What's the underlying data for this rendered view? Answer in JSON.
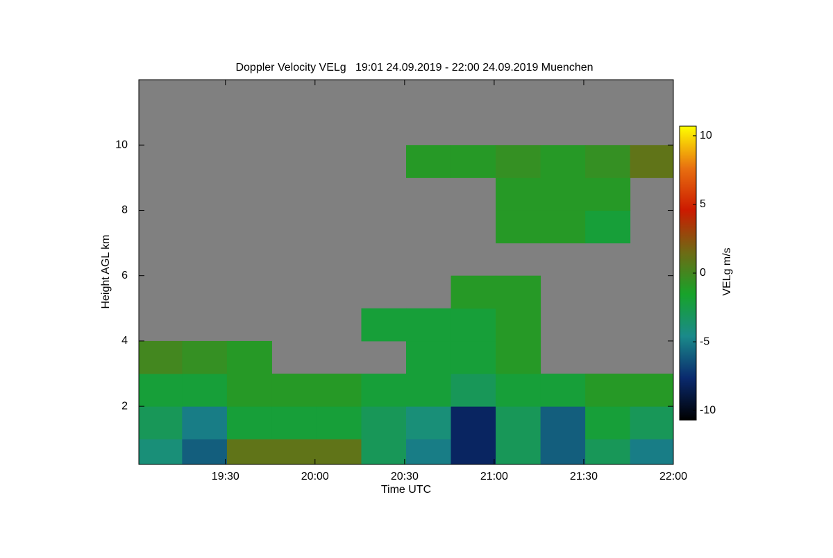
{
  "chart_data": {
    "type": "heatmap",
    "title": "Doppler Velocity VELg   19:01 24.09.2019 - 22:00 24.09.2019 Muenchen",
    "x_label": "Time UTC",
    "y_label": "Height AGL km",
    "colorbar_label": "VELg m/s",
    "xlim": [
      1141,
      1320
    ],
    "xticks": [
      {
        "value": 1170,
        "label": "19:30"
      },
      {
        "value": 1200,
        "label": "20:00"
      },
      {
        "value": 1230,
        "label": "20:30"
      },
      {
        "value": 1260,
        "label": "21:00"
      },
      {
        "value": 1290,
        "label": "21:30"
      },
      {
        "value": 1320,
        "label": "22:00"
      }
    ],
    "ylim": [
      0.22,
      12
    ],
    "yticks": [
      2,
      4,
      6,
      8,
      10
    ],
    "clim": [
      -10.7,
      10.7
    ],
    "cticks": [
      -10,
      -5,
      0,
      5,
      10
    ],
    "colormap": [
      "#000000",
      "#0a2a6e",
      "#1a8a8a",
      "#17a32a",
      "#6f6a14",
      "#cc1a00",
      "#e87010",
      "#ffff00"
    ],
    "background": "#808080",
    "x": [
      1148,
      1163,
      1178,
      1193,
      1208,
      1223,
      1238,
      1253,
      1268,
      1283,
      1298,
      1313
    ],
    "y": [
      0.5,
      1.5,
      2.5,
      3.5,
      4.5,
      5.5,
      6.5,
      7.5,
      8.5,
      9.5,
      10.5,
      11.5
    ],
    "values": [
      [
        -4,
        -6,
        1,
        1,
        1,
        -3,
        -5,
        -8,
        -3,
        -6,
        -3,
        -5
      ],
      [
        -3,
        -5,
        -2,
        -2,
        -2,
        -3,
        -4,
        -8,
        -3,
        -6,
        -2,
        -3
      ],
      [
        -2,
        -2,
        -1,
        -1,
        -1,
        -2,
        -2,
        -3,
        -2,
        -2,
        -1,
        -1
      ],
      [
        0,
        -0.5,
        -1,
        null,
        null,
        null,
        -2,
        -2,
        -1,
        null,
        null,
        null
      ],
      [
        null,
        null,
        null,
        null,
        null,
        -2,
        -2,
        -2,
        -1,
        null,
        null,
        null
      ],
      [
        null,
        null,
        null,
        null,
        null,
        null,
        null,
        -1,
        -1,
        null,
        null,
        null
      ],
      [
        null,
        null,
        null,
        null,
        null,
        null,
        null,
        null,
        null,
        null,
        null,
        null
      ],
      [
        null,
        null,
        null,
        null,
        null,
        null,
        null,
        null,
        -1,
        -1,
        -2,
        null
      ],
      [
        null,
        null,
        null,
        null,
        null,
        null,
        null,
        null,
        -1,
        -1,
        -1,
        null
      ],
      [
        null,
        null,
        null,
        null,
        null,
        null,
        -1,
        -1,
        -0.5,
        -1,
        -0.5,
        1
      ],
      [
        null,
        null,
        null,
        null,
        null,
        null,
        null,
        null,
        null,
        null,
        null,
        null
      ],
      [
        null,
        null,
        null,
        null,
        null,
        null,
        null,
        null,
        null,
        null,
        null,
        null
      ]
    ]
  }
}
